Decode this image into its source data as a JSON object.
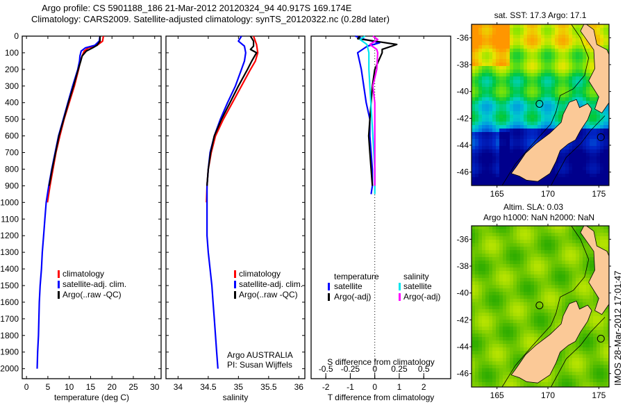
{
  "header": {
    "line1": "Argo profile: CS 5901188_186 21-Mar-2012 20120324_94 40.917S 169.174E",
    "line2": "Climatology: CARS2009. Satellite-adjusted climatology: synTS_20120322.nc (0.28d later)"
  },
  "colors": {
    "climatology": "#ff0000",
    "satellite": "#0000ff",
    "argo": "#000000",
    "sal_satellite": "#00e5ee",
    "sal_argo": "#ff00ff",
    "land": "#fbc997"
  },
  "chart_data": [
    {
      "type": "line",
      "title": "",
      "xlabel": "temperature (deg C)",
      "ylabel": "",
      "xlim": [
        -1,
        31.5
      ],
      "ylim": [
        2060,
        0
      ],
      "xticks": [
        0,
        5,
        10,
        15,
        20,
        25,
        30
      ],
      "yticks": [
        0,
        100,
        200,
        300,
        400,
        500,
        600,
        700,
        800,
        900,
        1000,
        1100,
        1200,
        1300,
        1400,
        1500,
        1600,
        1700,
        1800,
        1900,
        2000
      ],
      "legend": {
        "position": "center-left",
        "entries": [
          "climatology",
          "satellite-adj. clim.",
          "Argo(..raw -QC)"
        ]
      },
      "series": [
        {
          "name": "climatology",
          "color": "#ff0000",
          "depth": [
            0,
            30,
            55,
            70,
            90,
            120,
            150,
            200,
            300,
            400,
            500,
            600,
            700,
            800,
            900,
            1000
          ],
          "values": [
            18.0,
            17.8,
            16.5,
            14.5,
            13.5,
            13.0,
            12.6,
            12.2,
            11.2,
            10.0,
            8.8,
            7.8,
            6.9,
            6.2,
            5.5,
            4.9
          ]
        },
        {
          "name": "satellite-adj. clim.",
          "color": "#0000ff",
          "depth": [
            0,
            30,
            55,
            70,
            90,
            120,
            150,
            200,
            300,
            400,
            500,
            600,
            700,
            800,
            900,
            1000,
            1100,
            1200,
            1300,
            1400,
            1500,
            1600,
            1700,
            1800,
            1900,
            2000
          ],
          "values": [
            17.2,
            17.0,
            16.0,
            13.8,
            12.8,
            12.5,
            12.4,
            12.0,
            10.8,
            9.7,
            8.6,
            7.5,
            6.7,
            5.9,
            5.2,
            4.6,
            4.3,
            4.0,
            3.7,
            3.5,
            3.2,
            3.0,
            2.9,
            2.8,
            2.6,
            2.5
          ]
        },
        {
          "name": "Argo(..raw -QC)",
          "color": "#000000",
          "depth": [
            0,
            30,
            55,
            70,
            90,
            120,
            150,
            200,
            300,
            400,
            500,
            600,
            700,
            800,
            900
          ],
          "values": [
            17.2,
            17.2,
            16.5,
            15.5,
            14.0,
            13.0,
            12.7,
            12.1,
            11.0,
            9.8,
            8.7,
            7.6,
            6.8,
            6.0,
            5.3
          ]
        }
      ]
    },
    {
      "type": "line",
      "title": "",
      "xlabel": "salinity",
      "ylabel": "",
      "xlim": [
        33.8,
        36.1
      ],
      "ylim": [
        2060,
        0
      ],
      "xticks": [
        34,
        34.5,
        35,
        35.5,
        36
      ],
      "legend": {
        "position": "center-right",
        "entries": [
          "climatology",
          "satellite-adj. clim.",
          "Argo(..raw -QC)"
        ]
      },
      "annotation": [
        "Argo AUSTRALIA",
        "PI: Susan Wijffels"
      ],
      "series": [
        {
          "name": "climatology",
          "color": "#ff0000",
          "depth": [
            0,
            50,
            100,
            150,
            200,
            300,
            400,
            500,
            600,
            700,
            800,
            900,
            1000
          ],
          "values": [
            35.25,
            35.3,
            35.32,
            35.28,
            35.2,
            35.05,
            34.9,
            34.75,
            34.62,
            34.55,
            34.5,
            34.48,
            34.47
          ]
        },
        {
          "name": "satellite-adj. clim.",
          "color": "#0000ff",
          "depth": [
            0,
            30,
            60,
            100,
            150,
            200,
            300,
            400,
            500,
            600,
            700,
            800,
            900,
            1000,
            1100,
            1200,
            1300,
            1400,
            1500,
            1600,
            1700,
            1800,
            1900,
            2000
          ],
          "values": [
            35.05,
            35.0,
            35.1,
            35.12,
            35.1,
            35.05,
            34.95,
            34.82,
            34.7,
            34.6,
            34.53,
            34.5,
            34.48,
            34.48,
            34.48,
            34.48,
            34.5,
            34.53,
            34.56,
            34.58,
            34.6,
            34.62,
            34.64,
            34.66
          ]
        },
        {
          "name": "Argo(..raw -QC)",
          "color": "#000000",
          "depth": [
            0,
            30,
            60,
            80,
            100,
            150,
            200,
            300,
            400,
            500,
            600,
            700,
            800,
            900
          ],
          "values": [
            35.2,
            35.25,
            35.25,
            35.2,
            35.3,
            35.22,
            35.15,
            35.0,
            34.86,
            34.72,
            34.6,
            34.54,
            34.5,
            34.48
          ]
        }
      ]
    },
    {
      "type": "line",
      "title": "",
      "xlabel": "T difference from climatology",
      "x2label": "S difference from climatology",
      "xlim": [
        -2.6,
        3.1
      ],
      "ylim": [
        2060,
        0
      ],
      "xticks": [
        -2,
        -1,
        0,
        1,
        2
      ],
      "x2ticks": [
        "-0.5",
        "-0.25",
        "0",
        "0.25",
        "0.5"
      ],
      "legend": {
        "position": "center",
        "groups": [
          {
            "title": "temperature",
            "entries": [
              "satellite",
              "Argo(-adj)"
            ]
          },
          {
            "title": "salinity",
            "entries": [
              "satellite",
              "Argo(-adj)"
            ]
          }
        ]
      },
      "series": [
        {
          "name": "temperature satellite",
          "color": "#0000ff",
          "depth": [
            0,
            20,
            40,
            60,
            100,
            200,
            300,
            400,
            500,
            600,
            700,
            800,
            900,
            950
          ],
          "values": [
            -0.8,
            -0.4,
            0.2,
            -0.3,
            -0.7,
            -0.55,
            -0.45,
            -0.35,
            -0.2,
            -0.2,
            -0.15,
            -0.1,
            -0.1,
            -0.15
          ]
        },
        {
          "name": "temperature Argo(-adj)",
          "color": "#000000",
          "depth": [
            0,
            15,
            30,
            50,
            80,
            100,
            200,
            300,
            400,
            500,
            600,
            700,
            800,
            900
          ],
          "values": [
            -0.6,
            -0.7,
            0.0,
            0.9,
            0.3,
            0.3,
            0.0,
            -0.1,
            -0.15,
            -0.2,
            -0.25,
            -0.2,
            -0.15,
            -0.1
          ]
        },
        {
          "name": "salinity satellite",
          "color": "#00e5ee",
          "depth": [
            0,
            20,
            50,
            100,
            200,
            300,
            400,
            500,
            600,
            700,
            800,
            900,
            950
          ],
          "values": [
            -0.1,
            -0.15,
            -0.08,
            -0.06,
            -0.06,
            -0.05,
            -0.04,
            -0.03,
            -0.02,
            -0.01,
            0.0,
            0.0,
            0.0
          ]
        },
        {
          "name": "salinity Argo(-adj)",
          "color": "#ff00ff",
          "depth": [
            0,
            20,
            50,
            80,
            100,
            200,
            300,
            400,
            500,
            600,
            700,
            800,
            900
          ],
          "values": [
            -0.02,
            0.03,
            -0.05,
            0.02,
            0.03,
            0.02,
            -0.02,
            0.0,
            0.0,
            0.0,
            0.0,
            0.0,
            0.0
          ]
        }
      ]
    },
    {
      "type": "heatmap",
      "title": "sat. SST: 17.3 Argo: 17.1",
      "xlim": [
        162.5,
        176
      ],
      "ylim": [
        -47,
        -35
      ],
      "xticks": [
        165,
        170,
        175
      ],
      "yticks": [
        -36,
        -38,
        -40,
        -42,
        -44,
        -46
      ],
      "markers": [
        {
          "lon": 169.17,
          "lat": -40.92
        },
        {
          "lon": 175.2,
          "lat": -43.4
        }
      ]
    },
    {
      "type": "heatmap",
      "title": "Altim. SLA: 0.03",
      "subtitle": "Argo h1000: NaN h2000: NaN",
      "xlim": [
        162.5,
        176
      ],
      "ylim": [
        -47,
        -35
      ],
      "xticks": [
        165,
        170,
        175
      ],
      "yticks": [
        -36,
        -38,
        -40,
        -42,
        -44,
        -46
      ],
      "markers": [
        {
          "lon": 169.17,
          "lat": -40.92
        },
        {
          "lon": 175.2,
          "lat": -43.4
        }
      ]
    }
  ],
  "side_stamp": "IMOS 28-Mar-2012 17:01:47"
}
